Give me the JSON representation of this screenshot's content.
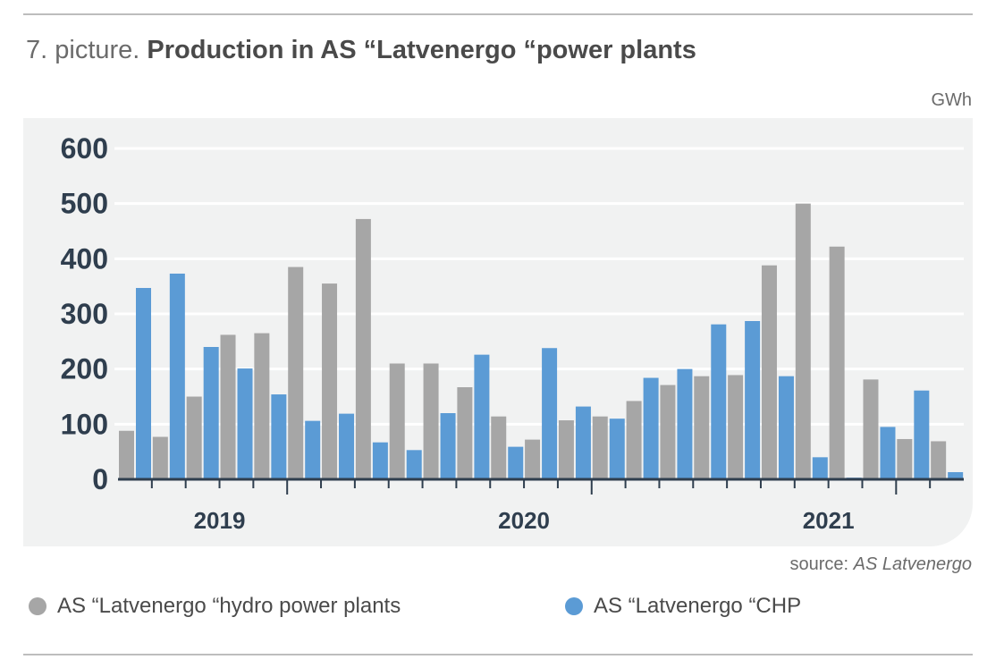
{
  "header": {
    "title_prefix": "7. picture.",
    "title_main": "Production in AS “Latvenergo “power plants",
    "unit": "GWh"
  },
  "footer": {
    "source_label": "source:",
    "source_name": "AS Latvenergo"
  },
  "colors": {
    "hydro": "#a6a6a6",
    "chp": "#5b9bd5",
    "axis": "#2f3e4e",
    "grid": "#ffffff"
  },
  "chart_data": {
    "type": "bar",
    "title": "Production in AS “Latvenergo “power plants",
    "ylabel": "GWh",
    "ylim": [
      0,
      600
    ],
    "yticks": [
      0,
      100,
      200,
      300,
      400,
      500,
      600
    ],
    "grid": true,
    "legend_position": "bottom",
    "year_labels": [
      {
        "label": "2019",
        "center_index": 2.5
      },
      {
        "label": "2020",
        "center_index": 11.5
      },
      {
        "label": "2021",
        "center_index": 20.5
      }
    ],
    "series": [
      {
        "name": "AS “Latvenergo “hydro power plants",
        "values": [
          88,
          77,
          150,
          262,
          265,
          385,
          355,
          472,
          210,
          210,
          167,
          114,
          72,
          107,
          114,
          142,
          171,
          187,
          189,
          388,
          500,
          422,
          181,
          73,
          69
        ]
      },
      {
        "name": "AS “Latvenergo “CHP",
        "values": [
          347,
          373,
          240,
          201,
          154,
          106,
          119,
          67,
          53,
          120,
          226,
          59,
          238,
          132,
          110,
          184,
          200,
          281,
          287,
          187,
          40,
          3,
          95,
          161,
          13
        ]
      }
    ]
  }
}
